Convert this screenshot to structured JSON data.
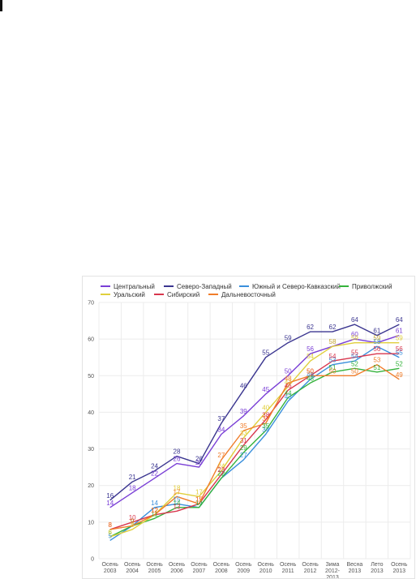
{
  "chart_data": {
    "type": "line",
    "title": "",
    "xlabel": "",
    "ylabel": "",
    "ylim": [
      0,
      70
    ],
    "yticks": [
      0,
      10,
      20,
      30,
      40,
      50,
      60,
      70
    ],
    "grid": "on",
    "legend_position": "top",
    "categories": [
      [
        "Осень",
        "2003"
      ],
      [
        "Осень",
        "2004"
      ],
      [
        "Осень",
        "2005"
      ],
      [
        "Осень",
        "2006"
      ],
      [
        "Осень",
        "2007"
      ],
      [
        "Осень",
        "2008"
      ],
      [
        "Осень",
        "2009"
      ],
      [
        "Осень",
        "2010"
      ],
      [
        "Осень",
        "2011"
      ],
      [
        "Осень",
        "2012"
      ],
      [
        "Зима",
        "2012-",
        "2013"
      ],
      [
        "Весна",
        "2013"
      ],
      [
        "Лето",
        "2013"
      ],
      [
        "Осень",
        "2013"
      ]
    ],
    "series": [
      {
        "name": "Центральный",
        "color": "#7a3fd6",
        "values": [
          14,
          18,
          22,
          26,
          25,
          34,
          39,
          45,
          50,
          56,
          58,
          60,
          59,
          61
        ]
      },
      {
        "name": "Северо-Западный",
        "color": "#3b3690",
        "values": [
          16,
          21,
          24,
          28,
          26,
          37,
          46,
          55,
          59,
          62,
          62,
          64,
          61,
          64
        ]
      },
      {
        "name": "Южный и Северо-Кавказский",
        "color": "#3a8fdc",
        "values": [
          5,
          9,
          14,
          15,
          14,
          22,
          27,
          34,
          43,
          49,
          53,
          54,
          58,
          55
        ]
      },
      {
        "name": "Приволжский",
        "color": "#35b33c",
        "values": [
          6,
          9,
          11,
          14,
          14,
          22,
          29,
          35,
          44,
          48,
          51,
          52,
          51,
          52
        ]
      },
      {
        "name": "Уральский",
        "color": "#e0cf3c",
        "values": [
          6,
          8,
          12,
          18,
          17,
          24,
          33,
          40,
          47,
          54,
          58,
          59,
          59,
          59
        ]
      },
      {
        "name": "Сибирский",
        "color": "#d8364d",
        "values": [
          8,
          10,
          12,
          13,
          15,
          23,
          31,
          38,
          46,
          50,
          54,
          55,
          56,
          56
        ]
      },
      {
        "name": "Дальневосточный",
        "color": "#f07d2a",
        "values": [
          8,
          9,
          12,
          17,
          15,
          27,
          35,
          37,
          48,
          50,
          50,
          50,
          53,
          49
        ]
      }
    ]
  }
}
